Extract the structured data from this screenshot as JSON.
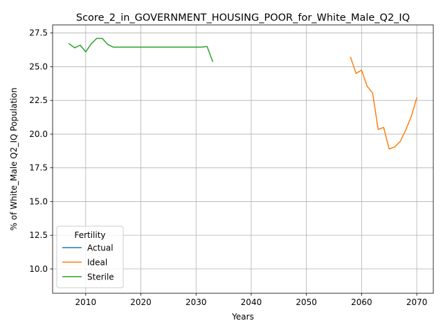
{
  "chart_data": {
    "type": "line",
    "title": "Score_2_in_GOVERNMENT_HOUSING_POOR_for_White_Male_Q2_IQ",
    "xlabel": "Years",
    "ylabel": "% of White_Male Q2_IQ Population",
    "xlim": [
      2004,
      2073
    ],
    "ylim": [
      8.2,
      28.1
    ],
    "xticks": [
      2010,
      2020,
      2030,
      2040,
      2050,
      2060,
      2070
    ],
    "yticks": [
      10.0,
      12.5,
      15.0,
      17.5,
      20.0,
      22.5,
      25.0,
      27.5
    ],
    "xtick_labels": [
      "2010",
      "2020",
      "2030",
      "2040",
      "2050",
      "2060",
      "2070"
    ],
    "ytick_labels": [
      "10.0",
      "12.5",
      "15.0",
      "17.5",
      "20.0",
      "22.5",
      "25.0",
      "27.5"
    ],
    "grid": true,
    "legend": {
      "title": "Fertility",
      "placement": "lower-left",
      "entries": [
        "Actual",
        "Ideal",
        "Sterile"
      ]
    },
    "series": [
      {
        "name": "Actual",
        "color": "#1f77b4",
        "x": [],
        "y": []
      },
      {
        "name": "Ideal",
        "color": "#ff7f0e",
        "x": [
          2058,
          2059,
          2060,
          2061,
          2062,
          2063,
          2064,
          2065,
          2066,
          2067,
          2068,
          2069,
          2070
        ],
        "y": [
          25.7,
          24.5,
          24.75,
          23.55,
          23.05,
          20.35,
          20.5,
          18.9,
          19.05,
          19.45,
          20.3,
          21.3,
          22.7
        ]
      },
      {
        "name": "Sterile",
        "color": "#2ca02c",
        "x": [
          2007,
          2008,
          2009,
          2010,
          2011,
          2012,
          2013,
          2014,
          2015,
          2016,
          2017,
          2018,
          2019,
          2020,
          2021,
          2022,
          2023,
          2024,
          2025,
          2026,
          2027,
          2028,
          2029,
          2030,
          2031,
          2032,
          2033
        ],
        "y": [
          26.7,
          26.4,
          26.6,
          26.1,
          26.7,
          27.1,
          27.1,
          26.65,
          26.45,
          26.45,
          26.45,
          26.45,
          26.45,
          26.45,
          26.45,
          26.45,
          26.45,
          26.45,
          26.45,
          26.45,
          26.45,
          26.45,
          26.45,
          26.45,
          26.45,
          26.5,
          25.4
        ]
      }
    ]
  }
}
